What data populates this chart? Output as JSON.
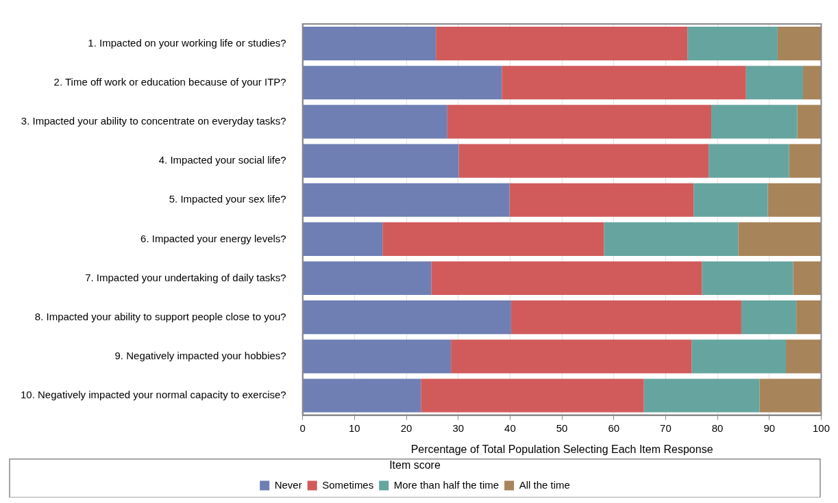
{
  "chart_data": {
    "type": "bar",
    "orientation": "horizontal",
    "stacked": true,
    "categories": [
      "1. Impacted on your working life or studies?",
      "2. Time off work or education because of your ITP?",
      "3. Impacted your ability to concentrate on everyday tasks?",
      "4. Impacted your social life?",
      "5. Impacted your sex life?",
      "6. Impacted your energy levels?",
      "7. Impacted your undertaking of daily tasks?",
      "8. Impacted your ability to support people close to you?",
      "9. Negatively impacted your hobbies?",
      "10. Negatively impacted your normal capacity to exercise?"
    ],
    "series": [
      {
        "name": "Never",
        "color": "#6f7fb4",
        "values": [
          25.7,
          38.4,
          27.9,
          30.1,
          39.9,
          15.4,
          24.8,
          40.2,
          28.6,
          22.8
        ]
      },
      {
        "name": "Sometimes",
        "color": "#d15b5b",
        "values": [
          48.5,
          47.1,
          50.9,
          48.2,
          35.5,
          42.7,
          52.2,
          44.4,
          46.4,
          43.0
        ]
      },
      {
        "name": "More than half the time",
        "color": "#66a59f",
        "values": [
          17.4,
          11.0,
          16.6,
          15.5,
          14.3,
          25.9,
          17.6,
          10.6,
          18.2,
          22.3
        ]
      },
      {
        "name": "All the time",
        "color": "#a8845a",
        "values": [
          8.4,
          3.5,
          4.6,
          6.2,
          10.3,
          16.0,
          5.4,
          4.8,
          6.8,
          11.9
        ]
      }
    ],
    "xlabel": "Percentage of Total Population Selecting Each Item Response",
    "xlim": [
      0,
      100
    ],
    "xticks": [
      0,
      10,
      20,
      30,
      40,
      50,
      60,
      70,
      80,
      90,
      100
    ],
    "grid": "x",
    "legend": "bottom",
    "legend_title": "Item score"
  }
}
